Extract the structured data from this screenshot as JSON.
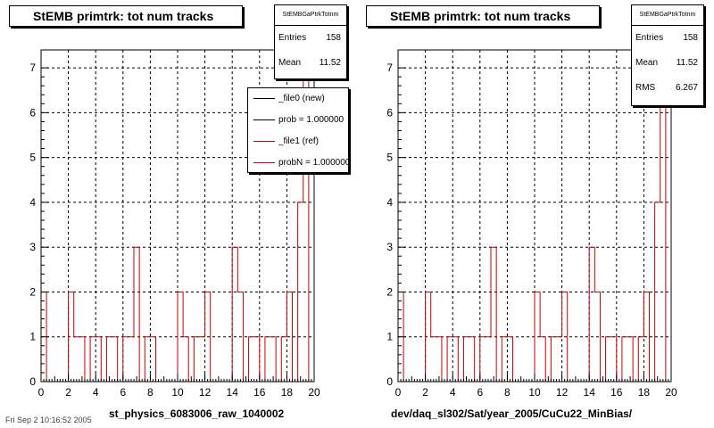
{
  "chart_data": [
    {
      "type": "bar",
      "title": "StEMB primtrk: tot num tracks",
      "xlabel": "st_physics_6083006_raw_1040002",
      "ylabel": "",
      "xlim": [
        0,
        20
      ],
      "ylim": [
        0,
        7.4
      ],
      "x_ticks": [
        "0",
        "2",
        "4",
        "6",
        "8",
        "10",
        "12",
        "14",
        "16",
        "18",
        "20"
      ],
      "y_ticks": [
        "0",
        "1",
        "2",
        "3",
        "4",
        "5",
        "6",
        "7"
      ],
      "grid": true,
      "bin_width": 0.4,
      "bin_starts": [
        0,
        0.4,
        0.8,
        1.2,
        1.6,
        2.0,
        2.4,
        2.8,
        3.2,
        3.6,
        4.0,
        4.4,
        4.8,
        5.2,
        5.6,
        6.0,
        6.4,
        6.8,
        7.2,
        7.6,
        8.0,
        8.4,
        8.8,
        9.2,
        9.6,
        10.0,
        10.4,
        10.8,
        11.2,
        11.6,
        12.0,
        12.4,
        12.8,
        13.2,
        13.6,
        14.0,
        14.4,
        14.8,
        15.2,
        15.6,
        16.0,
        16.4,
        16.8,
        17.2,
        17.6,
        18.0,
        18.4,
        18.8,
        19.2,
        19.6
      ],
      "values": [
        2,
        0,
        0,
        0,
        0,
        2,
        1,
        1,
        0,
        1,
        1,
        0,
        1,
        1,
        0,
        1,
        1,
        3,
        0,
        1,
        1,
        0,
        0,
        0,
        0,
        2,
        1,
        0,
        1,
        1,
        2,
        0,
        0,
        0,
        0,
        3,
        2,
        0,
        1,
        1,
        0,
        1,
        1,
        0,
        1,
        2,
        0,
        4,
        7,
        0
      ],
      "series_color": "#cc0000",
      "stats": {
        "header": "StEMBGaPtrkTotnm",
        "entries_label": "Entries",
        "entries": "158",
        "mean_label": "Mean",
        "mean": "11.52"
      },
      "legend": [
        {
          "label": "_file0 (new)",
          "color": "#000000"
        },
        {
          "label": "prob = 1.000000",
          "color": "#000000"
        },
        {
          "label": "_file1 (ref)",
          "color": "#cc0000"
        },
        {
          "label": "probN = 1.000000",
          "color": "#cc0000"
        }
      ]
    },
    {
      "type": "bar",
      "title": "StEMB primtrk: tot num tracks",
      "xlabel": "dev/daq_sl302/Sat/year_2005/CuCu22_MinBias/",
      "ylabel": "",
      "xlim": [
        0,
        20
      ],
      "ylim": [
        0,
        7.4
      ],
      "x_ticks": [
        "0",
        "2",
        "4",
        "6",
        "8",
        "10",
        "12",
        "14",
        "16",
        "18",
        "20"
      ],
      "y_ticks": [
        "0",
        "1",
        "2",
        "3",
        "4",
        "5",
        "6",
        "7"
      ],
      "grid": true,
      "bin_width": 0.4,
      "bin_starts": [
        0,
        0.4,
        0.8,
        1.2,
        1.6,
        2.0,
        2.4,
        2.8,
        3.2,
        3.6,
        4.0,
        4.4,
        4.8,
        5.2,
        5.6,
        6.0,
        6.4,
        6.8,
        7.2,
        7.6,
        8.0,
        8.4,
        8.8,
        9.2,
        9.6,
        10.0,
        10.4,
        10.8,
        11.2,
        11.6,
        12.0,
        12.4,
        12.8,
        13.2,
        13.6,
        14.0,
        14.4,
        14.8,
        15.2,
        15.6,
        16.0,
        16.4,
        16.8,
        17.2,
        17.6,
        18.0,
        18.4,
        18.8,
        19.2,
        19.6
      ],
      "values": [
        2,
        0,
        0,
        0,
        0,
        2,
        1,
        1,
        0,
        1,
        1,
        0,
        1,
        1,
        0,
        1,
        1,
        3,
        0,
        1,
        1,
        0,
        0,
        0,
        0,
        2,
        1,
        0,
        1,
        1,
        2,
        0,
        0,
        0,
        0,
        3,
        2,
        0,
        1,
        1,
        0,
        1,
        1,
        0,
        1,
        2,
        0,
        4,
        7,
        0
      ],
      "series_color": "#cc0000",
      "stats": {
        "header": "StEMBGaPtrkTotnm",
        "entries_label": "Entries",
        "entries": "158",
        "mean_label": "Mean",
        "mean": "11.52",
        "rms_label": "RMS",
        "rms": "6.267"
      }
    }
  ],
  "footer": "Fri Sep 2 10:16:52 2005"
}
